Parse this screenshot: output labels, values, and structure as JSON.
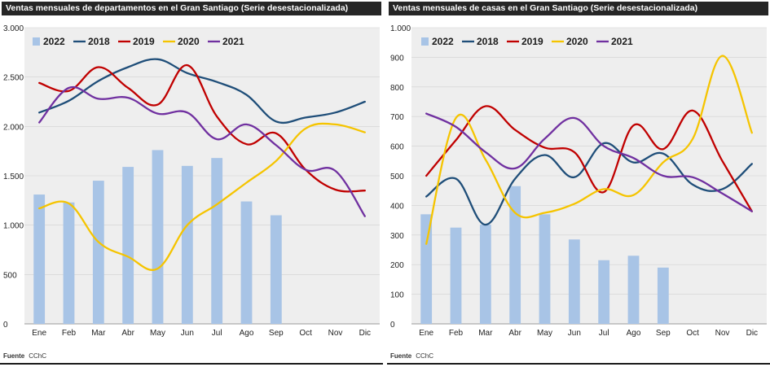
{
  "chart_data": [
    {
      "type": "bar+line",
      "title": "Ventas mensuales de departamentos en el Gran Santiago (Serie desestacionalizada)",
      "categories": [
        "Ene",
        "Feb",
        "Mar",
        "Abr",
        "May",
        "Jun",
        "Jul",
        "Ago",
        "Sep",
        "Oct",
        "Nov",
        "Dic"
      ],
      "ylim": [
        0,
        3000
      ],
      "yticks": [
        0,
        500,
        1000,
        1500,
        2000,
        2500,
        3000
      ],
      "ytick_labels": [
        "0",
        "500",
        "1.000",
        "1.500",
        "2.000",
        "2.500",
        "3.000"
      ],
      "grid": true,
      "legend": "top",
      "bars": {
        "name": "2022",
        "color": "#a8c4e6",
        "values": [
          1310,
          1230,
          1450,
          1590,
          1760,
          1600,
          1680,
          1240,
          1100
        ]
      },
      "series": [
        {
          "name": "2018",
          "color": "#1f4e79",
          "values": [
            2140,
            2260,
            2460,
            2600,
            2680,
            2540,
            2450,
            2320,
            2050,
            2090,
            2140,
            2250
          ]
        },
        {
          "name": "2019",
          "color": "#c00000",
          "values": [
            2440,
            2360,
            2600,
            2390,
            2220,
            2620,
            2100,
            1820,
            1930,
            1560,
            1360,
            1350
          ]
        },
        {
          "name": "2020",
          "color": "#f5c400",
          "values": [
            1170,
            1220,
            830,
            680,
            560,
            1000,
            1210,
            1430,
            1650,
            1980,
            2020,
            1940
          ]
        },
        {
          "name": "2021",
          "color": "#7030a0",
          "values": [
            2040,
            2390,
            2280,
            2290,
            2130,
            2140,
            1870,
            2020,
            1810,
            1560,
            1550,
            1090
          ]
        }
      ],
      "source_label": "Fuente",
      "source_value": "CChC"
    },
    {
      "type": "bar+line",
      "title": "Ventas mensuales de casas en el Gran Santiago (Serie desestacionalizada)",
      "categories": [
        "Ene",
        "Feb",
        "Mar",
        "Abr",
        "May",
        "Jun",
        "Jul",
        "Ago",
        "Sep",
        "Oct",
        "Nov",
        "Dic"
      ],
      "ylim": [
        0,
        1000
      ],
      "yticks": [
        0,
        100,
        200,
        300,
        400,
        500,
        600,
        700,
        800,
        900,
        1000
      ],
      "ytick_labels": [
        "0",
        "100",
        "200",
        "300",
        "400",
        "500",
        "600",
        "700",
        "800",
        "900",
        "1.000"
      ],
      "grid": true,
      "legend": "top",
      "bars": {
        "name": "2022",
        "color": "#a8c4e6",
        "values": [
          370,
          325,
          335,
          465,
          370,
          285,
          215,
          230,
          190
        ]
      },
      "series": [
        {
          "name": "2018",
          "color": "#1f4e79",
          "values": [
            430,
            490,
            335,
            490,
            570,
            495,
            610,
            545,
            575,
            470,
            455,
            540
          ]
        },
        {
          "name": "2019",
          "color": "#c00000",
          "values": [
            500,
            620,
            735,
            655,
            595,
            580,
            445,
            670,
            590,
            720,
            550,
            380
          ]
        },
        {
          "name": "2020",
          "color": "#f5c400",
          "values": [
            270,
            695,
            555,
            375,
            375,
            405,
            455,
            435,
            545,
            625,
            905,
            645
          ]
        },
        {
          "name": "2021",
          "color": "#7030a0",
          "values": [
            710,
            665,
            580,
            525,
            625,
            695,
            600,
            560,
            500,
            495,
            440,
            380
          ]
        }
      ],
      "source_label": "Fuente",
      "source_value": "CChC"
    }
  ]
}
